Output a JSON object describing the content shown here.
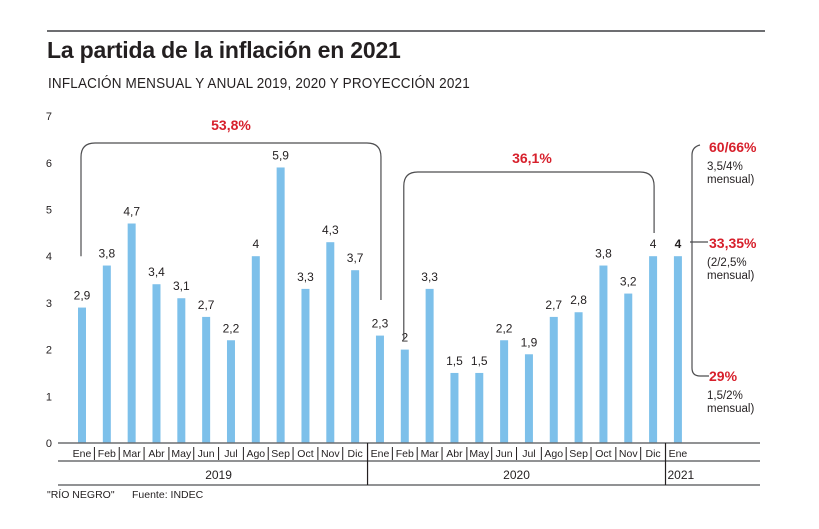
{
  "header": {
    "title": "La partida de la inflación en 2021",
    "subtitle": "INFLACIÓN MENSUAL Y ANUAL 2019, 2020 Y PROYECCIÓN 2021"
  },
  "footer": {
    "credit": "\"RÍO NEGRO\"",
    "source": "Fuente: INDEC"
  },
  "colors": {
    "bar": "#7dc0ea",
    "accent_red": "#d7202c",
    "text": "#231f20",
    "line": "#6d6e71"
  },
  "chart_data": {
    "type": "bar",
    "title": "La partida de la inflación en 2021",
    "subtitle": "INFLACIÓN MENSUAL Y ANUAL 2019, 2020 Y PROYECCIÓN 2021",
    "xlabel": "",
    "ylabel": "",
    "ylim": [
      0,
      7
    ],
    "yticks": [
      "0",
      "1",
      "2",
      "3",
      "4",
      "5",
      "6",
      "7"
    ],
    "grid": false,
    "categories": [
      "Ene",
      "Feb",
      "Mar",
      "Abr",
      "May",
      "Jun",
      "Jul",
      "Ago",
      "Sep",
      "Oct",
      "Nov",
      "Dic",
      "Ene",
      "Feb",
      "Mar",
      "Abr",
      "May",
      "Jun",
      "Jul",
      "Ago",
      "Sep",
      "Oct",
      "Nov",
      "Dic",
      "Ene"
    ],
    "values": [
      2.9,
      3.8,
      4.7,
      3.4,
      3.1,
      2.7,
      2.2,
      4,
      5.9,
      3.3,
      4.3,
      3.7,
      2.3,
      2,
      3.3,
      1.5,
      1.5,
      2.2,
      1.9,
      2.7,
      2.8,
      3.8,
      3.2,
      4,
      4
    ],
    "value_labels": [
      "2,9",
      "3,8",
      "4,7",
      "3,4",
      "3,1",
      "2,7",
      "2,2",
      "4",
      "5,9",
      "3,3",
      "4,3",
      "3,7",
      "2,3",
      "2",
      "3,3",
      "1,5",
      "1,5",
      "2,2",
      "1,9",
      "2,7",
      "2,8",
      "3,8",
      "3,2",
      "4",
      "4"
    ],
    "years": [
      {
        "label": "2019",
        "start": 0,
        "end": 11
      },
      {
        "label": "2020",
        "start": 12,
        "end": 23
      },
      {
        "label": "2021",
        "start": 24,
        "end": 24
      }
    ],
    "annotations": [
      {
        "label": "53,8%",
        "type": "bracket",
        "from": 0,
        "to": 12,
        "from_value": 4,
        "to_value": 2.7
      },
      {
        "label": "36,1%",
        "type": "bracket",
        "from": 13,
        "to": 23,
        "from_value": 2.7,
        "to_value": 4.3
      }
    ],
    "projection_2021": {
      "scenarios": [
        {
          "annual": "60/66%",
          "monthly": "3,5/4%",
          "monthly_suffix": "mensual)"
        },
        {
          "annual": "33,35%",
          "monthly": "(2/2,5%",
          "monthly_suffix": "mensual)"
        },
        {
          "annual": "29%",
          "monthly": "1,5/2%",
          "monthly_suffix": "mensual)"
        }
      ]
    }
  }
}
